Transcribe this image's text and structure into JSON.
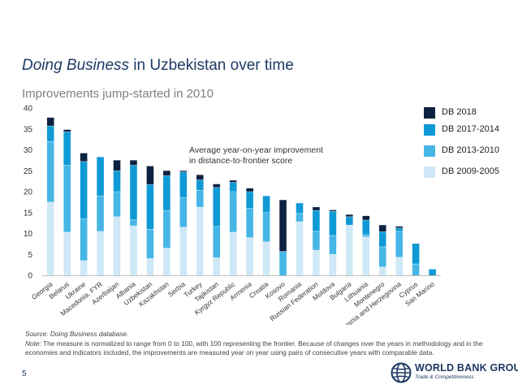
{
  "title": {
    "emphasis": "Doing Business",
    "rest": " in Uzbekistan over time"
  },
  "subtitle": "Improvements jump-started in 2010",
  "annotation": [
    "Average year-on-year improvement",
    "in distance-to-frontier score"
  ],
  "footnote": {
    "source_label": "Source:",
    "source_text": " Doing Business database.",
    "note_label": "Note:",
    "note_text": " The measure is normalized to range from 0 to 100, with 100 representing the frontier. Because of changes over the years in methodology and in the economies and indicators included, the improvements are measured year on year using pairs of consecutive years with comparable data."
  },
  "page_number": "5",
  "logo": {
    "name": "WORLD BANK GROUP",
    "sub": "Trade & Competitiveness"
  },
  "colors": {
    "DB 2018": "#0d2240",
    "DB 2017-2014": "#0f9ad6",
    "DB 2013-2010": "#46b6e6",
    "DB 2009-2005": "#cfe8f7",
    "title": "#1f3864"
  },
  "chart_data": {
    "type": "bar",
    "stacked": true,
    "ylim": [
      0,
      40
    ],
    "yticks": [
      0,
      5,
      10,
      15,
      20,
      25,
      30,
      35,
      40
    ],
    "grid": false,
    "legend_position": "right",
    "categories": [
      "Georgia",
      "Belarus",
      "Ukraine",
      "Macedonia, FYR",
      "Azerbaijan",
      "Albania",
      "Uzbekistan",
      "Kazakhstan",
      "Serbia",
      "Turkey",
      "Tajikistan",
      "Kyrgyz Republic",
      "Armenia",
      "Croatia",
      "Kosovo",
      "Romania",
      "Russian Federation",
      "Moldova",
      "Bulgaria",
      "Lithuania",
      "Montenegro",
      "Bosnia and Herzegovina",
      "Cyprus",
      "San Marino"
    ],
    "highlight": "Uzbekistan",
    "series": [
      {
        "name": "DB 2009-2005",
        "values": [
          17.5,
          10.3,
          3.5,
          10.5,
          14.0,
          11.8,
          4.0,
          6.5,
          11.5,
          16.3,
          4.2,
          10.3,
          9.0,
          8.0,
          0.0,
          12.8,
          6.0,
          5.0,
          12.0,
          9.2,
          2.0,
          4.3,
          0.0,
          0.0
        ]
      },
      {
        "name": "DB 2013-2010",
        "values": [
          14.5,
          16.0,
          10.0,
          8.5,
          6.0,
          1.5,
          7.0,
          9.0,
          7.0,
          4.0,
          7.5,
          9.7,
          7.0,
          7.0,
          5.7,
          2.0,
          4.5,
          4.5,
          0.0,
          0.5,
          4.8,
          6.2,
          2.7,
          0.0
        ]
      },
      {
        "name": "DB 2017-2014",
        "values": [
          3.7,
          8.0,
          13.7,
          9.3,
          5.0,
          13.0,
          10.7,
          8.3,
          6.2,
          2.5,
          9.3,
          2.2,
          4.0,
          4.0,
          0.0,
          2.5,
          5.0,
          5.8,
          2.0,
          3.5,
          3.6,
          0.8,
          4.9,
          1.5
        ]
      },
      {
        "name": "DB 2018",
        "values": [
          2.0,
          0.5,
          2.0,
          0.0,
          2.5,
          1.2,
          4.4,
          1.2,
          0.3,
          1.2,
          0.8,
          0.5,
          0.8,
          0.0,
          12.3,
          0.0,
          0.8,
          0.3,
          0.5,
          1.0,
          1.6,
          0.4,
          0.0,
          0.0
        ]
      }
    ]
  }
}
